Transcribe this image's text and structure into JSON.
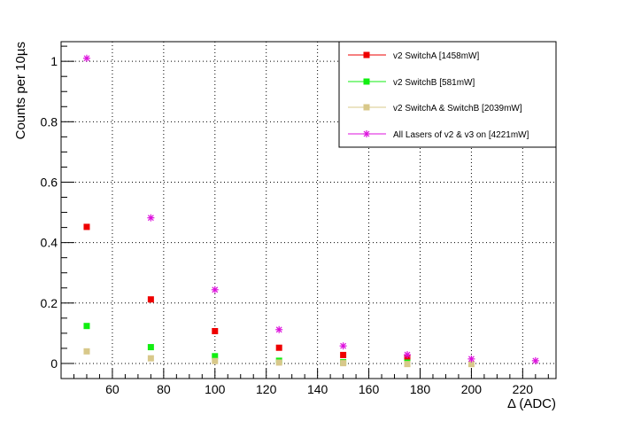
{
  "chart_data": {
    "type": "scatter",
    "title": "",
    "xlabel": "Δ (ADC)",
    "ylabel": "Counts per 10µs",
    "xlim": [
      40,
      233
    ],
    "ylim": [
      -0.05,
      1.065
    ],
    "grid": true,
    "legend_position": "top-right",
    "x_ticks": [
      "60",
      "80",
      "100",
      "120",
      "140",
      "160",
      "180",
      "200",
      "220"
    ],
    "x_tick_values": [
      60,
      80,
      100,
      120,
      140,
      160,
      180,
      200,
      220
    ],
    "y_ticks": [
      "0",
      "0.2",
      "0.4",
      "0.6",
      "0.8",
      "1"
    ],
    "y_tick_values": [
      0,
      0.2,
      0.4,
      0.6,
      0.8,
      1.0
    ],
    "series": [
      {
        "name": "v2 SwitchA [1458mW]",
        "color": "#ee0000",
        "marker": "square",
        "x": [
          50,
          75,
          100,
          125,
          150,
          175
        ],
        "y": [
          0.452,
          0.212,
          0.107,
          0.052,
          0.028,
          0.017
        ]
      },
      {
        "name": "v2 SwitchB [581mW]",
        "color": "#11ee11",
        "marker": "square",
        "x": [
          50,
          75,
          100,
          125,
          150,
          175
        ],
        "y": [
          0.124,
          0.054,
          0.024,
          0.009,
          0.004,
          0.003
        ]
      },
      {
        "name": "v2 SwitchA & SwitchB [2039mW]",
        "color": "#d8c88a",
        "marker": "square",
        "x": [
          50,
          75,
          100,
          125,
          150,
          175,
          200
        ],
        "y": [
          0.04,
          0.017,
          0.008,
          0.003,
          0.001,
          -0.002,
          -0.002
        ]
      },
      {
        "name": "All Lasers of v2 & v3 on [4221mW]",
        "color": "#dd11dd",
        "marker": "star",
        "x": [
          50,
          75,
          100,
          125,
          150,
          175,
          200,
          225
        ],
        "y": [
          1.01,
          0.482,
          0.244,
          0.112,
          0.058,
          0.029,
          0.015,
          0.009
        ]
      }
    ]
  }
}
